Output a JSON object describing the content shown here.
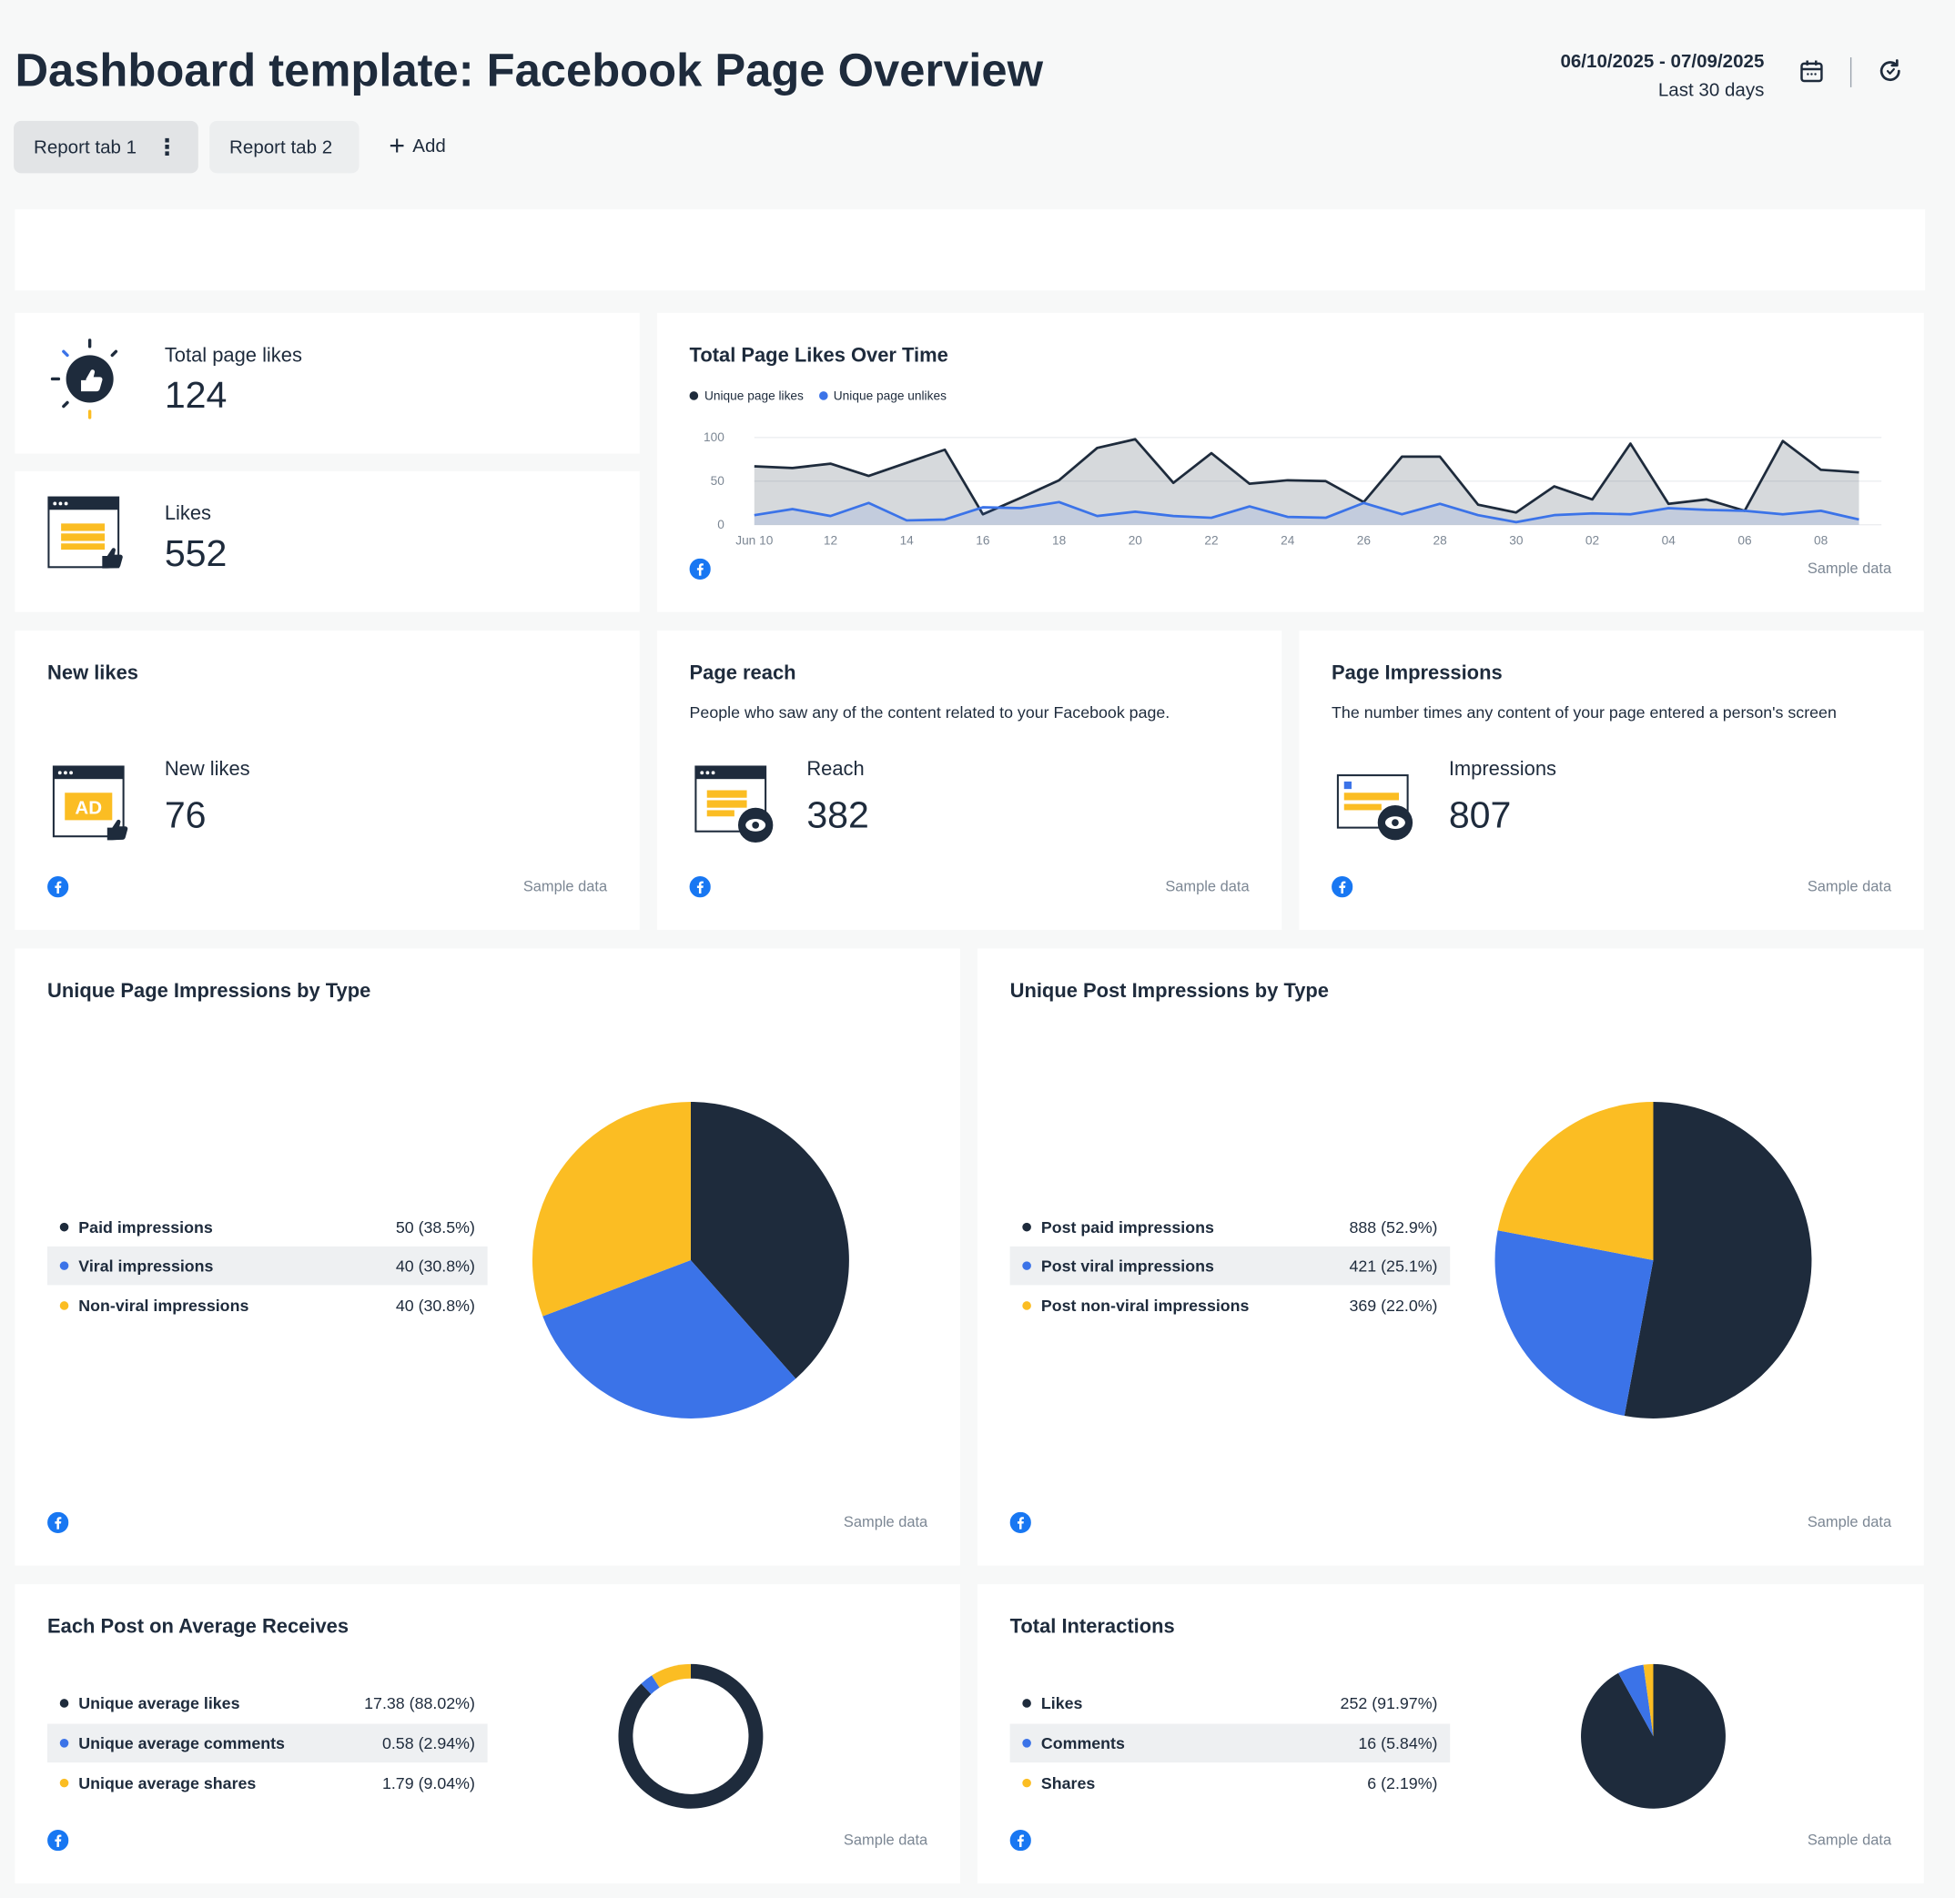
{
  "header": {
    "title": "Dashboard template: Facebook Page Overview",
    "date_range": "06/10/2025 - 07/09/2025",
    "date_preset": "Last 30 days",
    "calendar_icon": "calendar-icon",
    "refresh_icon": "refresh-icon"
  },
  "tabs": [
    {
      "label": "Report tab 1",
      "active": true
    },
    {
      "label": "Report tab 2",
      "active": false
    }
  ],
  "add_tab_label": "Add",
  "colors": {
    "navy": "#1e2b3c",
    "blue": "#3b73e8",
    "yellow": "#fbbd23",
    "facebook": "#1877f2"
  },
  "sample_label": "Sample data",
  "kpis": {
    "total_page_likes": {
      "label": "Total page likes",
      "value": "124"
    },
    "likes": {
      "label": "Likes",
      "value": "552"
    },
    "new_likes": {
      "title": "New likes",
      "label": "New likes",
      "value": "76"
    },
    "page_reach": {
      "title": "Page reach",
      "description": "People who saw any of the content related to your Facebook page.",
      "label": "Reach",
      "value": "382"
    },
    "page_impressions": {
      "title": "Page Impressions",
      "description": "The number times any content of your page entered a person's screen",
      "label": "Impressions",
      "value": "807"
    }
  },
  "line_chart": {
    "title": "Total Page Likes Over Time",
    "legend": [
      "Unique page likes",
      "Unique page unlikes"
    ],
    "y_ticks": [
      "100",
      "50",
      "0"
    ],
    "x_ticks": [
      "Jun 10",
      "12",
      "14",
      "16",
      "18",
      "20",
      "22",
      "24",
      "26",
      "28",
      "30",
      "02",
      "04",
      "06",
      "08"
    ]
  },
  "pie_page_impressions": {
    "title": "Unique Page Impressions by Type",
    "rows": [
      {
        "label": "Paid impressions",
        "value": "50 (38.5%)"
      },
      {
        "label": "Viral impressions",
        "value": "40 (30.8%)"
      },
      {
        "label": "Non-viral impressions",
        "value": "40 (30.8%)"
      }
    ]
  },
  "pie_post_impressions": {
    "title": "Unique Post Impressions by Type",
    "rows": [
      {
        "label": "Post paid impressions",
        "value": "888 (52.9%)"
      },
      {
        "label": "Post viral impressions",
        "value": "421 (25.1%)"
      },
      {
        "label": "Post non-viral impressions",
        "value": "369 (22.0%)"
      }
    ]
  },
  "donut_avg": {
    "title": "Each Post on Average Receives",
    "rows": [
      {
        "label": "Unique average likes",
        "value": "17.38 (88.02%)"
      },
      {
        "label": "Unique average comments",
        "value": "0.58 (2.94%)"
      },
      {
        "label": "Unique average shares",
        "value": "1.79 (9.04%)"
      }
    ]
  },
  "pie_interactions": {
    "title": "Total Interactions",
    "rows": [
      {
        "label": "Likes",
        "value": "252 (91.97%)"
      },
      {
        "label": "Comments",
        "value": "16 (5.84%)"
      },
      {
        "label": "Shares",
        "value": "6 (2.19%)"
      }
    ]
  },
  "chart_data": [
    {
      "type": "line",
      "title": "Total Page Likes Over Time",
      "ylim": [
        0,
        100
      ],
      "x": [
        "Jun 10",
        "11",
        "12",
        "13",
        "14",
        "15",
        "16",
        "17",
        "18",
        "19",
        "20",
        "21",
        "22",
        "23",
        "24",
        "25",
        "26",
        "27",
        "28",
        "29",
        "30",
        "Jul 01",
        "02",
        "03",
        "04",
        "05",
        "06",
        "07",
        "08",
        "09"
      ],
      "series": [
        {
          "name": "Unique page likes",
          "values": [
            67,
            65,
            70,
            56,
            71,
            86,
            12,
            31,
            51,
            88,
            98,
            48,
            82,
            47,
            51,
            50,
            26,
            78,
            78,
            23,
            14,
            44,
            29,
            93,
            24,
            29,
            16,
            96,
            63,
            60
          ]
        },
        {
          "name": "Unique page unlikes",
          "values": [
            11,
            18,
            10,
            25,
            5,
            6,
            20,
            19,
            26,
            10,
            15,
            10,
            8,
            21,
            9,
            8,
            25,
            12,
            24,
            11,
            3,
            11,
            13,
            12,
            19,
            17,
            16,
            12,
            16,
            6
          ]
        }
      ]
    },
    {
      "type": "pie",
      "title": "Unique Page Impressions by Type",
      "categories": [
        "Paid impressions",
        "Viral impressions",
        "Non-viral impressions"
      ],
      "values": [
        50,
        40,
        40
      ]
    },
    {
      "type": "pie",
      "title": "Unique Post Impressions by Type",
      "categories": [
        "Post paid impressions",
        "Post viral impressions",
        "Post non-viral impressions"
      ],
      "values": [
        888,
        421,
        369
      ]
    },
    {
      "type": "pie",
      "title": "Each Post on Average Receives",
      "categories": [
        "Unique average likes",
        "Unique average comments",
        "Unique average shares"
      ],
      "values": [
        17.38,
        0.58,
        1.79
      ]
    },
    {
      "type": "pie",
      "title": "Total Interactions",
      "categories": [
        "Likes",
        "Comments",
        "Shares"
      ],
      "values": [
        252,
        16,
        6
      ]
    }
  ]
}
